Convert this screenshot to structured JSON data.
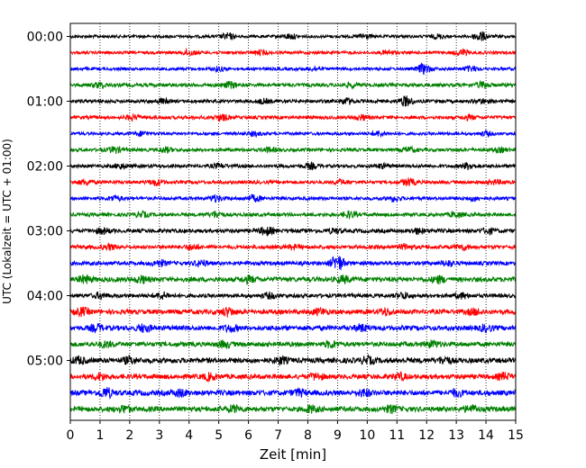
{
  "chart_data": {
    "type": "line",
    "title": "",
    "xlabel": "Zeit  [min]",
    "ylabel": "UTC (Lokalzeit = UTC + 01:00)",
    "xlim": [
      0,
      15
    ],
    "x_ticks": [
      "0",
      "1",
      "2",
      "3",
      "4",
      "5",
      "6",
      "7",
      "8",
      "9",
      "10",
      "11",
      "12",
      "13",
      "14",
      "15"
    ],
    "y_ticks": [
      "00:00",
      "01:00",
      "02:00",
      "03:00",
      "04:00",
      "05:00"
    ],
    "trace_interval_min": 15,
    "grid": "vertical dotted",
    "colors": [
      "#000000",
      "#ff0000",
      "#0000ff",
      "#008000"
    ],
    "traces": [
      {
        "start": "00:00",
        "color": "#000000",
        "base": 1.6,
        "bursts": [
          [
            5.3,
            3
          ],
          [
            7.4,
            2.5
          ],
          [
            9.9,
            2.5
          ],
          [
            12.4,
            2
          ],
          [
            13.8,
            5
          ]
        ]
      },
      {
        "start": "00:15",
        "color": "#ff0000",
        "base": 1.6,
        "bursts": [
          [
            4.0,
            3
          ],
          [
            6.4,
            2
          ],
          [
            10.7,
            2
          ],
          [
            13.2,
            3
          ]
        ]
      },
      {
        "start": "00:30",
        "color": "#0000ff",
        "base": 1.6,
        "bursts": [
          [
            5.0,
            2
          ],
          [
            8.2,
            2
          ],
          [
            11.9,
            5
          ],
          [
            13.5,
            2.5
          ]
        ]
      },
      {
        "start": "00:45",
        "color": "#008000",
        "base": 1.9,
        "bursts": [
          [
            1.0,
            2.5
          ],
          [
            5.4,
            3
          ],
          [
            9.5,
            2
          ],
          [
            13.9,
            3
          ]
        ]
      },
      {
        "start": "01:00",
        "color": "#000000",
        "base": 1.8,
        "bursts": [
          [
            3.1,
            2
          ],
          [
            6.5,
            2
          ],
          [
            9.3,
            3
          ],
          [
            11.3,
            5
          ],
          [
            13.9,
            2
          ]
        ]
      },
      {
        "start": "01:15",
        "color": "#ff0000",
        "base": 1.8,
        "bursts": [
          [
            2.1,
            2.5
          ],
          [
            5.1,
            3
          ],
          [
            9.8,
            2.5
          ],
          [
            13.4,
            2
          ]
        ]
      },
      {
        "start": "01:30",
        "color": "#0000ff",
        "base": 1.6,
        "bursts": [
          [
            2.4,
            2
          ],
          [
            6.2,
            2
          ],
          [
            10.4,
            2.5
          ],
          [
            14.0,
            2
          ]
        ]
      },
      {
        "start": "01:45",
        "color": "#008000",
        "base": 1.8,
        "bursts": [
          [
            1.5,
            3
          ],
          [
            3.2,
            2.5
          ],
          [
            6.7,
            2
          ],
          [
            11.4,
            2.5
          ],
          [
            14.5,
            2
          ]
        ]
      },
      {
        "start": "02:00",
        "color": "#000000",
        "base": 1.8,
        "bursts": [
          [
            1.7,
            2.5
          ],
          [
            5.0,
            2
          ],
          [
            8.1,
            2.5
          ],
          [
            10.5,
            2
          ],
          [
            13.4,
            3
          ]
        ]
      },
      {
        "start": "02:15",
        "color": "#ff0000",
        "base": 1.8,
        "bursts": [
          [
            0.5,
            2.5
          ],
          [
            2.9,
            3
          ],
          [
            9.1,
            2
          ],
          [
            11.4,
            3.5
          ],
          [
            14.3,
            2
          ]
        ]
      },
      {
        "start": "02:30",
        "color": "#0000ff",
        "base": 1.8,
        "bursts": [
          [
            1.5,
            2.5
          ],
          [
            4.9,
            3
          ],
          [
            6.2,
            3
          ],
          [
            10.9,
            2.5
          ],
          [
            13.6,
            2
          ]
        ]
      },
      {
        "start": "02:45",
        "color": "#008000",
        "base": 1.9,
        "bursts": [
          [
            2.4,
            2.5
          ],
          [
            4.9,
            3
          ],
          [
            9.4,
            3
          ],
          [
            13.0,
            2.5
          ]
        ]
      },
      {
        "start": "03:00",
        "color": "#000000",
        "base": 2.1,
        "bursts": [
          [
            1.1,
            2.5
          ],
          [
            6.6,
            4
          ],
          [
            8.9,
            2
          ],
          [
            11.7,
            2.5
          ],
          [
            14.1,
            2.5
          ]
        ]
      },
      {
        "start": "03:15",
        "color": "#ff0000",
        "base": 2.0,
        "bursts": [
          [
            1.3,
            2.5
          ],
          [
            4.1,
            2.5
          ],
          [
            7.5,
            2
          ],
          [
            11.3,
            2.5
          ],
          [
            13.2,
            2.5
          ]
        ]
      },
      {
        "start": "03:30",
        "color": "#0000ff",
        "base": 2.1,
        "bursts": [
          [
            3.0,
            3
          ],
          [
            4.4,
            3
          ],
          [
            9.0,
            8
          ],
          [
            12.7,
            2.5
          ]
        ]
      },
      {
        "start": "03:45",
        "color": "#008000",
        "base": 2.6,
        "bursts": [
          [
            0.5,
            3.5
          ],
          [
            2.4,
            3
          ],
          [
            6.0,
            3
          ],
          [
            9.2,
            3
          ],
          [
            12.4,
            3
          ]
        ]
      },
      {
        "start": "04:00",
        "color": "#000000",
        "base": 2.1,
        "bursts": [
          [
            1.0,
            2.5
          ],
          [
            3.1,
            3
          ],
          [
            6.7,
            2.5
          ],
          [
            11.2,
            3
          ],
          [
            13.2,
            2.5
          ]
        ]
      },
      {
        "start": "04:15",
        "color": "#ff0000",
        "base": 2.5,
        "bursts": [
          [
            0.4,
            3.5
          ],
          [
            5.3,
            4
          ],
          [
            8.4,
            3
          ],
          [
            10.6,
            3
          ],
          [
            13.6,
            2.5
          ]
        ]
      },
      {
        "start": "04:30",
        "color": "#0000ff",
        "base": 2.6,
        "bursts": [
          [
            0.9,
            3
          ],
          [
            2.5,
            3.5
          ],
          [
            5.4,
            3
          ],
          [
            9.8,
            3
          ],
          [
            14.0,
            3
          ]
        ]
      },
      {
        "start": "04:45",
        "color": "#008000",
        "base": 2.5,
        "bursts": [
          [
            1.2,
            2.5
          ],
          [
            5.2,
            3
          ],
          [
            8.8,
            3
          ],
          [
            12.2,
            3
          ]
        ]
      },
      {
        "start": "05:00",
        "color": "#000000",
        "base": 2.8,
        "bursts": [
          [
            0.3,
            3
          ],
          [
            2.0,
            3
          ],
          [
            7.1,
            3
          ],
          [
            10.0,
            3
          ],
          [
            12.6,
            3
          ]
        ]
      },
      {
        "start": "05:15",
        "color": "#ff0000",
        "base": 2.6,
        "bursts": [
          [
            1.0,
            3
          ],
          [
            4.7,
            3
          ],
          [
            8.3,
            3
          ],
          [
            11.1,
            3
          ],
          [
            14.6,
            3
          ]
        ]
      },
      {
        "start": "05:30",
        "color": "#0000ff",
        "base": 2.8,
        "bursts": [
          [
            1.2,
            4.5
          ],
          [
            3.7,
            3
          ],
          [
            7.7,
            3
          ],
          [
            9.9,
            3
          ],
          [
            13.0,
            3
          ]
        ]
      },
      {
        "start": "05:45",
        "color": "#008000",
        "base": 2.7,
        "bursts": [
          [
            1.8,
            3
          ],
          [
            5.5,
            3
          ],
          [
            8.1,
            3
          ],
          [
            10.8,
            3
          ],
          [
            13.5,
            3
          ]
        ]
      }
    ]
  }
}
